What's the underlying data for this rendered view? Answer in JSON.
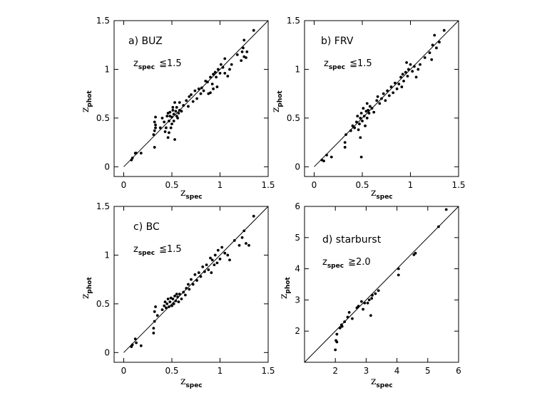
{
  "chart_data": [
    {
      "type": "scatter",
      "title": "a) BUZ",
      "selection": {
        "var": "z",
        "sub": "spec",
        "op": "≦",
        "value": "1.5"
      },
      "xlabel": {
        "var": "z",
        "sub": "spec"
      },
      "ylabel": {
        "var": "z",
        "sub": "phot"
      },
      "xlim": [
        -0.1,
        1.5
      ],
      "ylim": [
        -0.1,
        1.5
      ],
      "xticks": [
        "0",
        "0.5",
        "1",
        "1.5"
      ],
      "xtick_values": [
        0,
        0.5,
        1,
        1.5
      ],
      "yticks": [
        "0",
        "0.5",
        "1",
        "1.5"
      ],
      "ytick_values": [
        0,
        0.5,
        1,
        1.5
      ],
      "reference_line": "y = x",
      "points": [
        [
          0.08,
          0.07
        ],
        [
          0.09,
          0.09
        ],
        [
          0.12,
          0.14
        ],
        [
          0.13,
          0.14
        ],
        [
          0.18,
          0.14
        ],
        [
          0.32,
          0.2
        ],
        [
          0.31,
          0.33
        ],
        [
          0.32,
          0.37
        ],
        [
          0.33,
          0.4
        ],
        [
          0.32,
          0.46
        ],
        [
          0.33,
          0.51
        ],
        [
          0.33,
          0.43
        ],
        [
          0.38,
          0.4
        ],
        [
          0.4,
          0.5
        ],
        [
          0.42,
          0.46
        ],
        [
          0.43,
          0.36
        ],
        [
          0.44,
          0.4
        ],
        [
          0.45,
          0.52
        ],
        [
          0.46,
          0.3
        ],
        [
          0.46,
          0.55
        ],
        [
          0.47,
          0.47
        ],
        [
          0.47,
          0.35
        ],
        [
          0.48,
          0.52
        ],
        [
          0.48,
          0.56
        ],
        [
          0.49,
          0.4
        ],
        [
          0.5,
          0.44
        ],
        [
          0.5,
          0.51
        ],
        [
          0.51,
          0.58
        ],
        [
          0.51,
          0.61
        ],
        [
          0.52,
          0.47
        ],
        [
          0.52,
          0.54
        ],
        [
          0.53,
          0.28
        ],
        [
          0.53,
          0.66
        ],
        [
          0.54,
          0.57
        ],
        [
          0.55,
          0.52
        ],
        [
          0.55,
          0.61
        ],
        [
          0.56,
          0.5
        ],
        [
          0.57,
          0.55
        ],
        [
          0.58,
          0.58
        ],
        [
          0.58,
          0.66
        ],
        [
          0.6,
          0.57
        ],
        [
          0.62,
          0.63
        ],
        [
          0.65,
          0.68
        ],
        [
          0.67,
          0.62
        ],
        [
          0.68,
          0.72
        ],
        [
          0.7,
          0.74
        ],
        [
          0.72,
          0.67
        ],
        [
          0.74,
          0.78
        ],
        [
          0.76,
          0.7
        ],
        [
          0.78,
          0.8
        ],
        [
          0.8,
          0.75
        ],
        [
          0.81,
          0.81
        ],
        [
          0.83,
          0.78
        ],
        [
          0.85,
          0.88
        ],
        [
          0.87,
          0.87
        ],
        [
          0.88,
          0.75
        ],
        [
          0.9,
          0.76
        ],
        [
          0.9,
          0.92
        ],
        [
          0.92,
          0.85
        ],
        [
          0.93,
          0.8
        ],
        [
          0.93,
          0.95
        ],
        [
          0.95,
          0.97
        ],
        [
          0.96,
          0.92
        ],
        [
          0.97,
          0.82
        ],
        [
          0.98,
          1.0
        ],
        [
          1.0,
          0.96
        ],
        [
          1.01,
          1.05
        ],
        [
          1.03,
          1.02
        ],
        [
          1.05,
          1.11
        ],
        [
          1.05,
          0.96
        ],
        [
          1.08,
          0.93
        ],
        [
          1.1,
          1.0
        ],
        [
          1.12,
          1.05
        ],
        [
          1.18,
          1.15
        ],
        [
          1.22,
          1.09
        ],
        [
          1.23,
          1.18
        ],
        [
          1.24,
          1.22
        ],
        [
          1.25,
          1.13
        ],
        [
          1.25,
          1.3
        ],
        [
          1.27,
          1.12
        ],
        [
          1.28,
          1.18
        ],
        [
          1.35,
          1.4
        ]
      ]
    },
    {
      "type": "scatter",
      "title": "b) FRV",
      "selection": {
        "var": "z",
        "sub": "spec",
        "op": "≦",
        "value": "1.5"
      },
      "xlabel": {
        "var": "z",
        "sub": "spec"
      },
      "ylabel": {
        "var": "z",
        "sub": "phot"
      },
      "xlim": [
        -0.1,
        1.5
      ],
      "ylim": [
        -0.1,
        1.5
      ],
      "xticks": [
        "0",
        "0.5",
        "1",
        "1.5"
      ],
      "xtick_values": [
        0,
        0.5,
        1,
        1.5
      ],
      "yticks": [
        "0",
        "0.5",
        "1",
        "1.5"
      ],
      "ytick_values": [
        0,
        0.5,
        1,
        1.5
      ],
      "reference_line": "y = x",
      "points": [
        [
          0.08,
          0.07
        ],
        [
          0.1,
          0.06
        ],
        [
          0.13,
          0.12
        ],
        [
          0.18,
          0.1
        ],
        [
          0.32,
          0.2
        ],
        [
          0.32,
          0.25
        ],
        [
          0.33,
          0.33
        ],
        [
          0.38,
          0.37
        ],
        [
          0.4,
          0.42
        ],
        [
          0.42,
          0.4
        ],
        [
          0.44,
          0.46
        ],
        [
          0.45,
          0.52
        ],
        [
          0.46,
          0.38
        ],
        [
          0.47,
          0.44
        ],
        [
          0.48,
          0.3
        ],
        [
          0.48,
          0.5
        ],
        [
          0.49,
          0.55
        ],
        [
          0.49,
          0.1
        ],
        [
          0.5,
          0.47
        ],
        [
          0.51,
          0.6
        ],
        [
          0.52,
          0.52
        ],
        [
          0.53,
          0.42
        ],
        [
          0.54,
          0.57
        ],
        [
          0.55,
          0.65
        ],
        [
          0.55,
          0.5
        ],
        [
          0.56,
          0.58
        ],
        [
          0.57,
          0.55
        ],
        [
          0.58,
          0.62
        ],
        [
          0.6,
          0.6
        ],
        [
          0.62,
          0.56
        ],
        [
          0.65,
          0.68
        ],
        [
          0.66,
          0.72
        ],
        [
          0.68,
          0.65
        ],
        [
          0.7,
          0.7
        ],
        [
          0.72,
          0.75
        ],
        [
          0.74,
          0.68
        ],
        [
          0.76,
          0.78
        ],
        [
          0.78,
          0.73
        ],
        [
          0.8,
          0.82
        ],
        [
          0.82,
          0.76
        ],
        [
          0.84,
          0.86
        ],
        [
          0.86,
          0.8
        ],
        [
          0.88,
          0.85
        ],
        [
          0.9,
          0.92
        ],
        [
          0.91,
          0.82
        ],
        [
          0.92,
          0.95
        ],
        [
          0.93,
          0.88
        ],
        [
          0.95,
          0.97
        ],
        [
          0.96,
          1.07
        ],
        [
          0.97,
          0.93
        ],
        [
          0.98,
          1.0
        ],
        [
          1.0,
          1.05
        ],
        [
          1.02,
          0.98
        ],
        [
          1.04,
          1.03
        ],
        [
          1.06,
          0.92
        ],
        [
          1.08,
          1.0
        ],
        [
          1.1,
          1.05
        ],
        [
          1.15,
          1.12
        ],
        [
          1.2,
          1.17
        ],
        [
          1.22,
          1.1
        ],
        [
          1.23,
          1.25
        ],
        [
          1.25,
          1.35
        ],
        [
          1.27,
          1.22
        ],
        [
          1.3,
          1.28
        ],
        [
          1.35,
          1.4
        ]
      ]
    },
    {
      "type": "scatter",
      "title": "c) BC",
      "selection": {
        "var": "z",
        "sub": "spec",
        "op": "≦",
        "value": "1.5"
      },
      "xlabel": {
        "var": "z",
        "sub": "spec"
      },
      "ylabel": {
        "var": "z",
        "sub": "phot"
      },
      "xlim": [
        -0.1,
        1.5
      ],
      "ylim": [
        -0.1,
        1.5
      ],
      "xticks": [
        "0",
        "0.5",
        "1",
        "1.5"
      ],
      "xtick_values": [
        0,
        0.5,
        1,
        1.5
      ],
      "yticks": [
        "0",
        "0.5",
        "1",
        "1.5"
      ],
      "ytick_values": [
        0,
        0.5,
        1,
        1.5
      ],
      "reference_line": "y = x",
      "points": [
        [
          0.08,
          0.06
        ],
        [
          0.09,
          0.08
        ],
        [
          0.12,
          0.14
        ],
        [
          0.13,
          0.1
        ],
        [
          0.18,
          0.07
        ],
        [
          0.31,
          0.2
        ],
        [
          0.31,
          0.25
        ],
        [
          0.32,
          0.32
        ],
        [
          0.32,
          0.42
        ],
        [
          0.33,
          0.47
        ],
        [
          0.35,
          0.38
        ],
        [
          0.4,
          0.44
        ],
        [
          0.42,
          0.48
        ],
        [
          0.43,
          0.52
        ],
        [
          0.44,
          0.46
        ],
        [
          0.45,
          0.5
        ],
        [
          0.46,
          0.55
        ],
        [
          0.47,
          0.47
        ],
        [
          0.48,
          0.52
        ],
        [
          0.49,
          0.56
        ],
        [
          0.5,
          0.48
        ],
        [
          0.51,
          0.55
        ],
        [
          0.52,
          0.5
        ],
        [
          0.53,
          0.58
        ],
        [
          0.54,
          0.53
        ],
        [
          0.55,
          0.6
        ],
        [
          0.56,
          0.57
        ],
        [
          0.57,
          0.52
        ],
        [
          0.58,
          0.6
        ],
        [
          0.6,
          0.55
        ],
        [
          0.62,
          0.62
        ],
        [
          0.64,
          0.59
        ],
        [
          0.65,
          0.66
        ],
        [
          0.67,
          0.7
        ],
        [
          0.68,
          0.65
        ],
        [
          0.7,
          0.75
        ],
        [
          0.72,
          0.7
        ],
        [
          0.74,
          0.8
        ],
        [
          0.76,
          0.74
        ],
        [
          0.78,
          0.82
        ],
        [
          0.8,
          0.78
        ],
        [
          0.82,
          0.88
        ],
        [
          0.84,
          0.83
        ],
        [
          0.86,
          0.9
        ],
        [
          0.88,
          0.85
        ],
        [
          0.9,
          0.97
        ],
        [
          0.91,
          0.82
        ],
        [
          0.92,
          0.95
        ],
        [
          0.94,
          0.9
        ],
        [
          0.95,
          1.0
        ],
        [
          0.97,
          0.92
        ],
        [
          0.98,
          1.05
        ],
        [
          1.0,
          0.96
        ],
        [
          1.02,
          1.08
        ],
        [
          1.05,
          1.02
        ],
        [
          1.08,
          1.0
        ],
        [
          1.1,
          0.95
        ],
        [
          1.15,
          1.15
        ],
        [
          1.2,
          1.1
        ],
        [
          1.23,
          1.18
        ],
        [
          1.25,
          1.25
        ],
        [
          1.27,
          1.12
        ],
        [
          1.3,
          1.1
        ],
        [
          1.35,
          1.4
        ]
      ]
    },
    {
      "type": "scatter",
      "title": "d) starburst",
      "selection": {
        "var": "z",
        "sub": "spec",
        "op": "≧",
        "value": "2.0"
      },
      "xlabel": {
        "var": "z",
        "sub": "spec"
      },
      "ylabel": {
        "var": "z",
        "sub": "phot"
      },
      "xlim": [
        1,
        6
      ],
      "ylim": [
        1,
        6
      ],
      "xticks": [
        "2",
        "3",
        "4",
        "5",
        "6"
      ],
      "xtick_values": [
        2,
        3,
        4,
        5,
        6
      ],
      "yticks": [
        "2",
        "3",
        "4",
        "5",
        "6"
      ],
      "ytick_values": [
        2,
        3,
        4,
        5,
        6
      ],
      "reference_line": "y = x",
      "points": [
        [
          2.0,
          1.4
        ],
        [
          2.02,
          1.7
        ],
        [
          2.05,
          1.65
        ],
        [
          2.05,
          1.9
        ],
        [
          2.15,
          2.1
        ],
        [
          2.2,
          2.2
        ],
        [
          2.22,
          2.15
        ],
        [
          2.3,
          2.3
        ],
        [
          2.4,
          2.45
        ],
        [
          2.45,
          2.6
        ],
        [
          2.55,
          2.4
        ],
        [
          2.7,
          2.75
        ],
        [
          2.75,
          2.8
        ],
        [
          2.85,
          2.95
        ],
        [
          2.9,
          2.7
        ],
        [
          2.95,
          2.9
        ],
        [
          3.05,
          2.9
        ],
        [
          3.1,
          3.0
        ],
        [
          3.15,
          2.5
        ],
        [
          3.18,
          3.05
        ],
        [
          3.2,
          3.15
        ],
        [
          3.3,
          3.2
        ],
        [
          3.4,
          3.3
        ],
        [
          4.05,
          3.8
        ],
        [
          4.05,
          4.0
        ],
        [
          4.55,
          4.45
        ],
        [
          4.6,
          4.5
        ],
        [
          5.35,
          5.35
        ],
        [
          5.6,
          5.9
        ]
      ]
    }
  ]
}
